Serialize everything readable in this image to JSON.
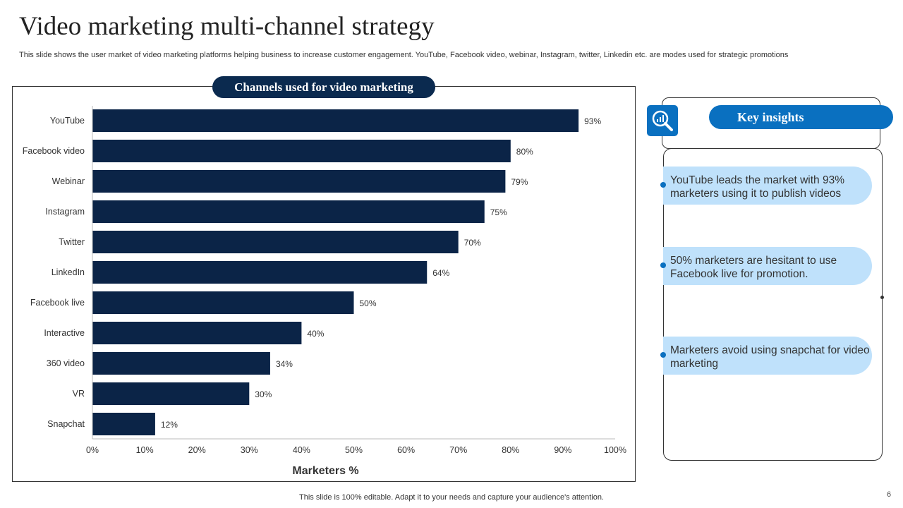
{
  "title": "Video marketing multi-channel strategy",
  "subtitle": "This slide shows the user market of video marketing platforms helping business to increase customer engagement. YouTube, Facebook video, webinar, Instagram, twitter, Linkedin etc. are modes used for strategic promotions",
  "chart_panel_title": "Channels used for video marketing",
  "chart_data": {
    "type": "bar",
    "orientation": "horizontal",
    "categories": [
      "YouTube",
      "Facebook video",
      "Webinar",
      "Instagram",
      "Twitter",
      "LinkedIn",
      "Facebook live",
      "Interactive",
      "360 video",
      "VR",
      "Snapchat"
    ],
    "values": [
      93,
      80,
      79,
      75,
      70,
      64,
      50,
      40,
      34,
      30,
      12
    ],
    "data_labels": [
      "93%",
      "80%",
      "79%",
      "75%",
      "70%",
      "64%",
      "50%",
      "40%",
      "34%",
      "30%",
      "12%"
    ],
    "xlabel": "Marketers %",
    "xlim": [
      0,
      100
    ],
    "x_ticks": [
      "0%",
      "10%",
      "20%",
      "30%",
      "40%",
      "50%",
      "60%",
      "70%",
      "80%",
      "90%",
      "100%"
    ],
    "bar_color": "#0b2447",
    "grid": false
  },
  "insights": {
    "title": "Key insights",
    "icon": "magnifier-chart-icon",
    "accent": "#0a70c0",
    "items": [
      "YouTube  leads the market with 93% marketers using it to publish videos",
      "50% marketers are hesitant  to use Facebook live  for promotion.",
      "Marketers avoid using snapchat  for video marketing"
    ]
  },
  "footer": "This slide is 100% editable. Adapt it to your needs and capture your audience's attention.",
  "page_number": "6"
}
